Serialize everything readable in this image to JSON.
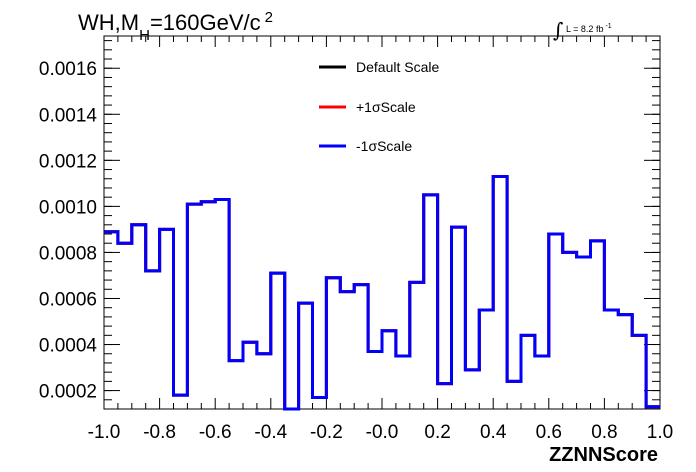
{
  "chart_data": {
    "type": "line",
    "title_main": "WH,M",
    "title_sub": "H",
    "title_rest": "=160GeV/c",
    "title_sup": "2",
    "xlabel": "ZZNNScore",
    "ylabel": "",
    "lumi_text": "L = 8.2 fb",
    "lumi_sup": "-1",
    "xlim": [
      -1.0,
      1.0
    ],
    "ylim": [
      0.00012,
      0.00174
    ],
    "x_ticks": [
      "-1.0",
      "-0.8",
      "-0.6",
      "-0.4",
      "-0.2",
      "-0.0",
      "0.2",
      "0.4",
      "0.6",
      "0.8",
      "1.0"
    ],
    "y_ticks": [
      "0.0002",
      "0.0004",
      "0.0006",
      "0.0008",
      "0.0010",
      "0.0012",
      "0.0014",
      "0.0016"
    ],
    "bin_edges": [
      -1.0,
      -0.95,
      -0.9,
      -0.85,
      -0.8,
      -0.75,
      -0.7,
      -0.65,
      -0.6,
      -0.55,
      -0.5,
      -0.45,
      -0.4,
      -0.35,
      -0.3,
      -0.25,
      -0.2,
      -0.15,
      -0.1,
      -0.05,
      0.0,
      0.05,
      0.1,
      0.15,
      0.2,
      0.25,
      0.3,
      0.35,
      0.4,
      0.45,
      0.5,
      0.55,
      0.6,
      0.65,
      0.7,
      0.75,
      0.8,
      0.85,
      0.9,
      0.95,
      1.0
    ],
    "series": [
      {
        "name": "Default Scale",
        "color": "#000000",
        "values": [
          0.00089,
          0.00084,
          0.00092,
          0.00072,
          0.0009,
          0.00018,
          0.00101,
          0.00102,
          0.00103,
          0.00033,
          0.00041,
          0.00036,
          0.00071,
          0.00012,
          0.00058,
          0.00017,
          0.00069,
          0.00063,
          0.00066,
          0.00037,
          0.00046,
          0.00035,
          0.00067,
          0.00105,
          0.00023,
          0.00091,
          0.00029,
          0.00055,
          0.00113,
          0.00024,
          0.00044,
          0.00035,
          0.00088,
          0.0008,
          0.00078,
          0.00085,
          0.00055,
          0.00053,
          0.00044,
          0.00013
        ]
      },
      {
        "name": "+1σScale",
        "color": "#ff0000",
        "values": [
          0.00089,
          0.00084,
          0.00092,
          0.00072,
          0.0009,
          0.00018,
          0.00101,
          0.00102,
          0.00103,
          0.00033,
          0.00041,
          0.00036,
          0.00071,
          0.00012,
          0.00058,
          0.00017,
          0.00069,
          0.00063,
          0.00066,
          0.00037,
          0.00046,
          0.00035,
          0.00067,
          0.00105,
          0.00023,
          0.00091,
          0.00029,
          0.00055,
          0.00113,
          0.00024,
          0.00044,
          0.00035,
          0.00088,
          0.0008,
          0.00078,
          0.00085,
          0.00055,
          0.00053,
          0.00044,
          0.00013
        ]
      },
      {
        "name": "-1σScale",
        "color": "#0000ff",
        "values": [
          0.00089,
          0.00084,
          0.00092,
          0.00072,
          0.0009,
          0.00018,
          0.00101,
          0.00102,
          0.00103,
          0.00033,
          0.00041,
          0.00036,
          0.00071,
          0.00012,
          0.00058,
          0.00017,
          0.00069,
          0.00063,
          0.00066,
          0.00037,
          0.00046,
          0.00035,
          0.00067,
          0.00105,
          0.00023,
          0.00091,
          0.00029,
          0.00055,
          0.00113,
          0.00024,
          0.00044,
          0.00035,
          0.00088,
          0.0008,
          0.00078,
          0.00085,
          0.00055,
          0.00053,
          0.00044,
          0.00013
        ]
      }
    ],
    "legend_position": "top-center",
    "grid": false
  }
}
